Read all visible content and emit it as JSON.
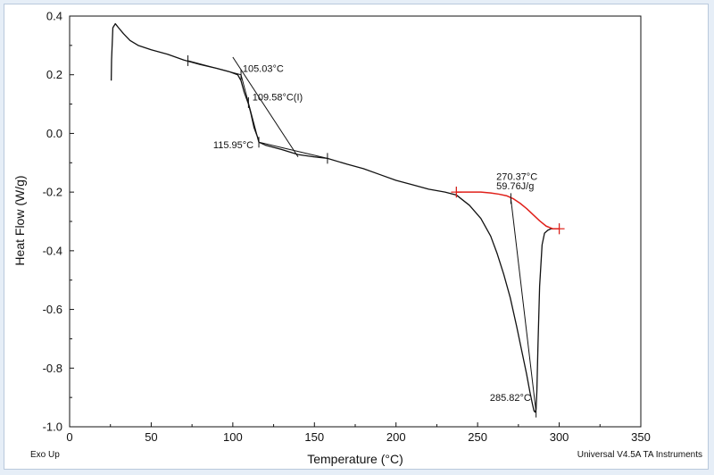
{
  "chart_data": {
    "type": "line",
    "title": "",
    "xlabel": "Temperature (°C)",
    "ylabel": "Heat Flow (W/g)",
    "xlim": [
      0,
      350
    ],
    "ylim": [
      -1.0,
      0.4
    ],
    "x_ticks": [
      0,
      50,
      100,
      150,
      200,
      250,
      300,
      350
    ],
    "y_ticks": [
      0.4,
      0.2,
      0.0,
      -0.2,
      -0.4,
      -0.6,
      -0.8,
      -1.0
    ],
    "x_tick_labels": [
      "0",
      "50",
      "100",
      "150",
      "200",
      "250",
      "300",
      "350"
    ],
    "y_tick_labels": [
      "0.4",
      "0.2",
      "0.0",
      "-0.2",
      "-0.4",
      "-0.6",
      "-0.8",
      "-1.0"
    ],
    "grid": false,
    "series": [
      {
        "color": "#111111",
        "x": [
          25.5,
          25.7,
          26.5,
          28,
          30,
          33,
          37,
          42,
          50,
          60,
          70,
          80,
          90,
          98,
          103,
          105,
          107,
          109.6,
          111,
          113,
          115,
          116,
          120,
          130,
          140,
          150,
          158,
          170,
          180,
          190,
          200,
          210,
          220,
          230,
          237,
          245,
          252,
          258,
          262,
          266,
          270,
          274,
          277,
          280,
          282,
          283.5,
          284.5,
          285.2,
          285.8,
          286.3,
          287,
          288,
          289.5,
          291,
          293,
          295,
          297,
          299,
          300
        ],
        "y": [
          0.18,
          0.25,
          0.36,
          0.374,
          0.36,
          0.34,
          0.317,
          0.3,
          0.285,
          0.27,
          0.25,
          0.235,
          0.222,
          0.21,
          0.2,
          0.18,
          0.14,
          0.1,
          0.07,
          0.02,
          -0.01,
          -0.03,
          -0.04,
          -0.055,
          -0.072,
          -0.08,
          -0.085,
          -0.105,
          -0.12,
          -0.14,
          -0.16,
          -0.175,
          -0.19,
          -0.2,
          -0.21,
          -0.245,
          -0.29,
          -0.35,
          -0.41,
          -0.48,
          -0.56,
          -0.66,
          -0.74,
          -0.82,
          -0.88,
          -0.92,
          -0.945,
          -0.95,
          -0.94,
          -0.88,
          -0.72,
          -0.52,
          -0.38,
          -0.34,
          -0.33,
          -0.325,
          -0.325,
          -0.325,
          -0.325
        ]
      },
      {
        "color": "#e0201a",
        "x": [
          237,
          245,
          252,
          258,
          263,
          268,
          272,
          276,
          280,
          284,
          288,
          292,
          296,
          300
        ],
        "y": [
          -0.2,
          -0.2,
          -0.2,
          -0.203,
          -0.207,
          -0.213,
          -0.223,
          -0.238,
          -0.256,
          -0.277,
          -0.298,
          -0.316,
          -0.325,
          -0.325
        ]
      }
    ],
    "construction_lines": [
      {
        "x": [
          72.5,
          105.03
        ],
        "y": [
          0.248,
          0.2
        ]
      },
      {
        "x": [
          105.03,
          115.95
        ],
        "y": [
          0.2,
          -0.03
        ]
      },
      {
        "x": [
          115.95,
          158
        ],
        "y": [
          -0.03,
          -0.085
        ]
      },
      {
        "x": [
          100,
          140
        ],
        "y": [
          0.26,
          -0.08
        ]
      },
      {
        "x": [
          270.37,
          285.82
        ],
        "y": [
          -0.222,
          -0.95
        ]
      }
    ],
    "tick_marks": [
      {
        "x": 72.5,
        "y": 0.248
      },
      {
        "x": 105.03,
        "y": 0.2
      },
      {
        "x": 109.58,
        "y": 0.105
      },
      {
        "x": 115.95,
        "y": -0.03
      },
      {
        "x": 158,
        "y": -0.085
      },
      {
        "x": 237,
        "y": -0.2
      },
      {
        "x": 270.37,
        "y": -0.222
      },
      {
        "x": 285.82,
        "y": -0.95
      },
      {
        "x": 300,
        "y": -0.325
      }
    ],
    "annotations": [
      {
        "text": "105.03°C",
        "x": 106,
        "y": 0.21
      },
      {
        "text": "109.58°C(I)",
        "x": 112,
        "y": 0.112
      },
      {
        "text": "115.95°C",
        "x": 88,
        "y": -0.05
      },
      {
        "text": "270.37°C",
        "x": 261.5,
        "y": -0.158
      },
      {
        "text": "59.76J/g",
        "x": 261.5,
        "y": -0.19
      },
      {
        "text": "285.82°C",
        "x": 257.5,
        "y": -0.912
      }
    ]
  },
  "footer": {
    "left": "Exo Up",
    "right": "Universal V4.5A TA Instruments"
  }
}
